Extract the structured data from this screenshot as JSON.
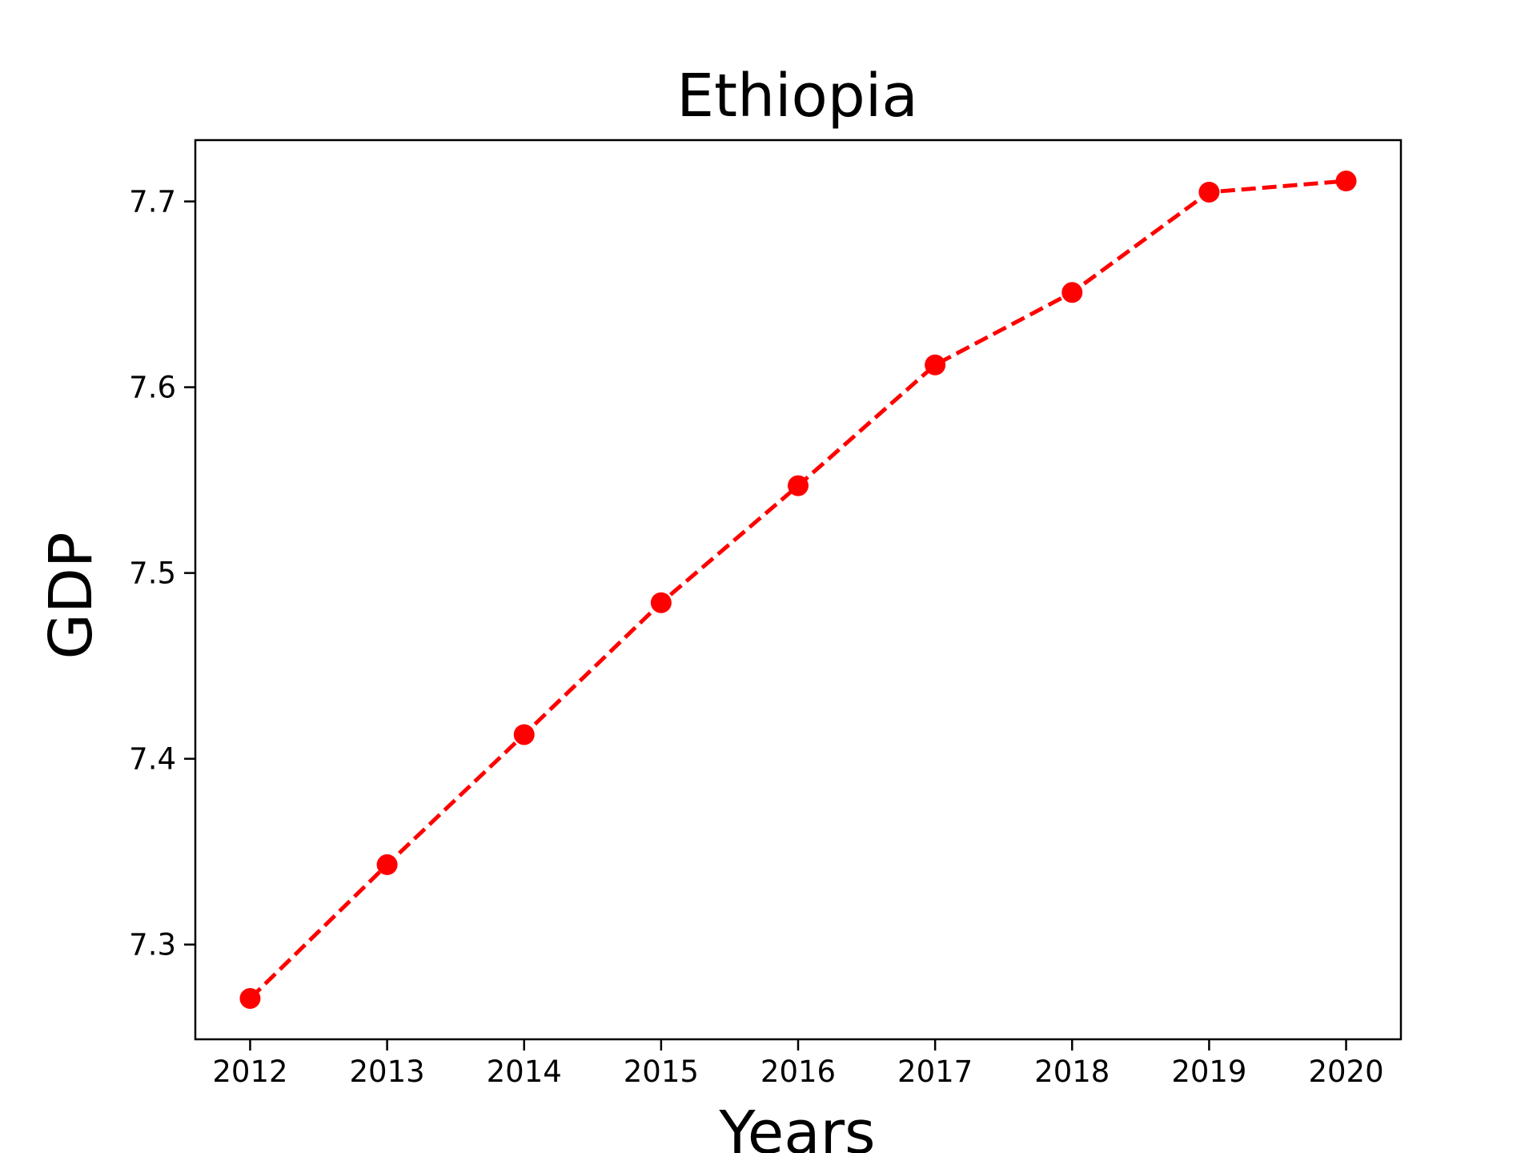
{
  "chart_data": {
    "type": "line",
    "title": "Ethiopia",
    "xlabel": "Years",
    "ylabel": "GDP",
    "x": [
      2012,
      2013,
      2014,
      2015,
      2016,
      2017,
      2018,
      2019,
      2020
    ],
    "series": [
      {
        "values": [
          7.271,
          7.343,
          7.413,
          7.484,
          7.547,
          7.612,
          7.651,
          7.705,
          7.711
        ],
        "color": "#ff0000",
        "line_style": "dashed",
        "marker": "circle"
      }
    ],
    "xticks": [
      "2012",
      "2013",
      "2014",
      "2015",
      "2016",
      "2017",
      "2018",
      "2019",
      "2020"
    ],
    "yticks": [
      "7.3",
      "7.4",
      "7.5",
      "7.6",
      "7.7"
    ],
    "ytick_values": [
      7.3,
      7.4,
      7.5,
      7.6,
      7.7
    ],
    "xlim": [
      2011.6,
      2020.4
    ],
    "ylim": [
      7.249,
      7.733
    ],
    "grid": false,
    "legend": false
  }
}
